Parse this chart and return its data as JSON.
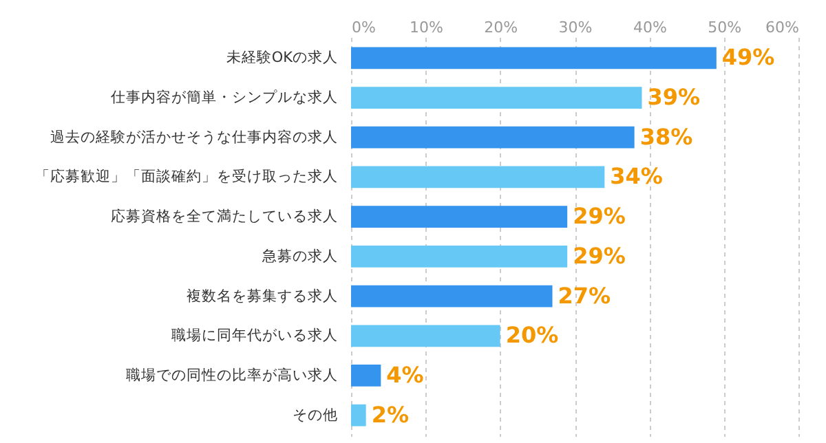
{
  "chart_data": {
    "type": "bar",
    "orientation": "horizontal",
    "categories": [
      "未経験OKの求人",
      "仕事内容が簡単・シンプルな求人",
      "過去の経験が活かせそうな仕事内容の求人",
      "「応募歓迎」「面談確約」を受け取った求人",
      "応募資格を全て満たしている求人",
      "急募の求人",
      "複数名を募集する求人",
      "職場に同年代がいる求人",
      "職場での同性の比率が高い求人",
      "その他"
    ],
    "values": [
      49,
      39,
      38,
      34,
      29,
      29,
      27,
      20,
      4,
      2
    ],
    "colors": [
      "#3595ee",
      "#66c8f5",
      "#3595ee",
      "#66c8f5",
      "#3595ee",
      "#66c8f5",
      "#3595ee",
      "#66c8f5",
      "#3595ee",
      "#66c8f5"
    ],
    "value_labels": [
      "49%",
      "39%",
      "38%",
      "34%",
      "29%",
      "29%",
      "27%",
      "20%",
      "4%",
      "2%"
    ],
    "xlim": [
      0,
      60
    ],
    "xticks": [
      {
        "value": 0,
        "label": "0%"
      },
      {
        "value": 10,
        "label": "10%"
      },
      {
        "value": 20,
        "label": "20%"
      },
      {
        "value": 30,
        "label": "30%"
      },
      {
        "value": 40,
        "label": "40%"
      },
      {
        "value": 50,
        "label": "50%"
      },
      {
        "value": 60,
        "label": "60%"
      }
    ],
    "grid": "x"
  }
}
